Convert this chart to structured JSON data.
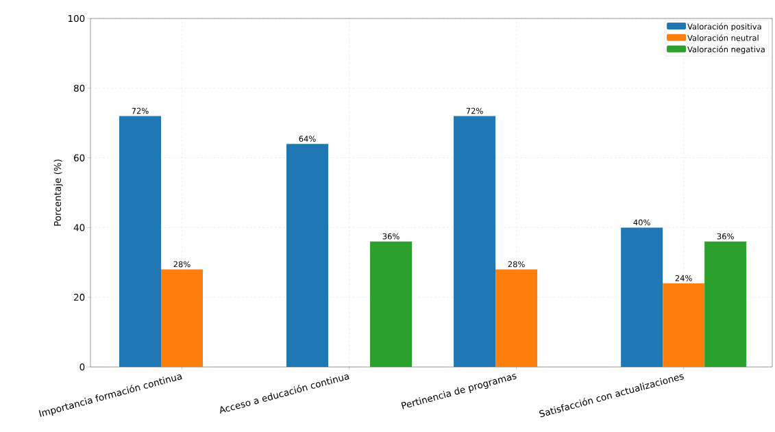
{
  "chart_data": {
    "type": "bar",
    "ylabel": "Porcentaje (%)",
    "categories": [
      "Importancia formación continua",
      "Acceso a educación continua",
      "Pertinencia de programas",
      "Satisfacción con actualizaciones"
    ],
    "series": [
      {
        "name": "Valoración positiva",
        "color": "#1f77b4",
        "values": [
          72,
          64,
          72,
          40
        ],
        "value_labels": [
          "72%",
          "64%",
          "72%",
          "40%"
        ]
      },
      {
        "name": "Valoración neutral",
        "color": "#ff7f0e",
        "values": [
          28,
          null,
          28,
          24
        ],
        "value_labels": [
          "28%",
          null,
          "28%",
          "24%"
        ]
      },
      {
        "name": "Valoración negativa",
        "color": "#2ca02c",
        "values": [
          null,
          36,
          null,
          36
        ],
        "value_labels": [
          null,
          "36%",
          null,
          "36%"
        ]
      }
    ],
    "ylim": [
      0,
      100
    ],
    "yticks": [
      0,
      20,
      40,
      60,
      80,
      100
    ],
    "grid": true,
    "legend": "top right"
  }
}
